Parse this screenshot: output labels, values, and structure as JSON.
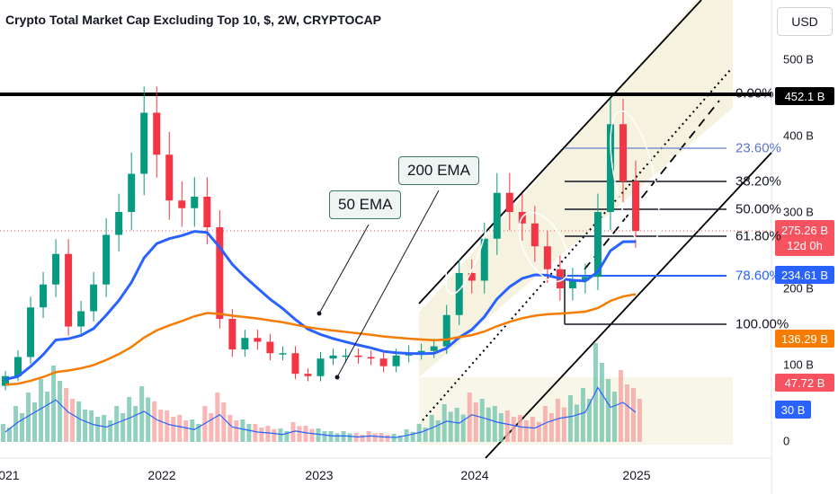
{
  "title": "Crypto Total Market Cap Excluding Top 10, $, 2W, CRYPTOCAP",
  "currency_button": "USD",
  "y_axis_labels": [
    "500 B",
    "400 B",
    "300 B",
    "200 B",
    "100 B",
    "0"
  ],
  "x_axis_labels": [
    "2021",
    "2022",
    "2023",
    "2024",
    "2025"
  ],
  "price_tags": [
    {
      "label": "452.1 B",
      "color": "#000000"
    },
    {
      "label": "275.26 B",
      "sub": "12d 0h",
      "color": "#f7525f"
    },
    {
      "label": "234.61 B",
      "color": "#2962ff"
    },
    {
      "label": "136.29 B",
      "color": "#f57c00"
    },
    {
      "label": "47.72 B",
      "color": "#f7525f"
    },
    {
      "label": "30 B",
      "color": "#2962ff"
    }
  ],
  "fib_levels": [
    {
      "label": "0.00%",
      "color": "#131722"
    },
    {
      "label": "23.60%",
      "color": "#5b75c9"
    },
    {
      "label": "38.20%",
      "color": "#131722"
    },
    {
      "label": "50.00%",
      "color": "#131722"
    },
    {
      "label": "61.80%",
      "color": "#131722"
    },
    {
      "label": "78.60%",
      "color": "#2962ff"
    },
    {
      "label": "100.00%",
      "color": "#131722"
    }
  ],
  "callouts": [
    {
      "label": "50 EMA"
    },
    {
      "label": "200 EMA"
    }
  ],
  "chart_data": {
    "type": "candlestick",
    "title": "Crypto Total Market Cap Excluding Top 10, $, 2W, CRYPTOCAP",
    "x_ticks": [
      "2021",
      "2022",
      "2023",
      "2024",
      "2025"
    ],
    "y_ticks": [
      "0",
      "100 B",
      "200 B",
      "300 B",
      "400 B",
      "500 B"
    ],
    "y_unit": "B USD",
    "close_series": [
      [
        "2020-12",
        85
      ],
      [
        "2021-01",
        110
      ],
      [
        "2021-02",
        175
      ],
      [
        "2021-03",
        205
      ],
      [
        "2021-04",
        245
      ],
      [
        "2021-05",
        150
      ],
      [
        "2021-06",
        170
      ],
      [
        "2021-07",
        205
      ],
      [
        "2021-08",
        270
      ],
      [
        "2021-09",
        300
      ],
      [
        "2021-10",
        350
      ],
      [
        "2021-11",
        430
      ],
      [
        "2021-12",
        375
      ],
      [
        "2022-01",
        315
      ],
      [
        "2022-02",
        305
      ],
      [
        "2022-03",
        320
      ],
      [
        "2022-04",
        280
      ],
      [
        "2022-05",
        160
      ],
      [
        "2022-06",
        120
      ],
      [
        "2022-07",
        135
      ],
      [
        "2022-08",
        130
      ],
      [
        "2022-09",
        115
      ],
      [
        "2022-10",
        115
      ],
      [
        "2022-11",
        88
      ],
      [
        "2022-12",
        85
      ],
      [
        "2023-01",
        108
      ],
      [
        "2023-02",
        112
      ],
      [
        "2023-03",
        112
      ],
      [
        "2023-04",
        110
      ],
      [
        "2023-05",
        108
      ],
      [
        "2023-06",
        98
      ],
      [
        "2023-07",
        112
      ],
      [
        "2023-08",
        116
      ],
      [
        "2023-09",
        118
      ],
      [
        "2023-10",
        124
      ],
      [
        "2023-11",
        165
      ],
      [
        "2023-12",
        220
      ],
      [
        "2024-01",
        210
      ],
      [
        "2024-02",
        265
      ],
      [
        "2024-03",
        325
      ],
      [
        "2024-04",
        300
      ],
      [
        "2024-05",
        285
      ],
      [
        "2024-06",
        255
      ],
      [
        "2024-07",
        225
      ],
      [
        "2024-08",
        200
      ],
      [
        "2024-09",
        210
      ],
      [
        "2024-10",
        215
      ],
      [
        "2024-11",
        300
      ],
      [
        "2024-12",
        415
      ],
      [
        "2025-01",
        340
      ],
      [
        "2025-02",
        275.26
      ]
    ],
    "series": [
      {
        "name": "50 EMA",
        "color": "#2962ff",
        "last_value": 234.61
      },
      {
        "name": "200 EMA",
        "color": "#f57c00",
        "last_value": 136.29
      },
      {
        "name": "Volume",
        "last_value": 47.72
      },
      {
        "name": "Volume MA",
        "color": "#2962ff",
        "last_value": 30
      }
    ],
    "horizontal_levels": [
      {
        "label": "0.00%",
        "value": 452.1
      },
      {
        "label": "78.60%",
        "value": 234.61
      }
    ],
    "last_price": 275.26,
    "countdown": "12d 0h"
  }
}
